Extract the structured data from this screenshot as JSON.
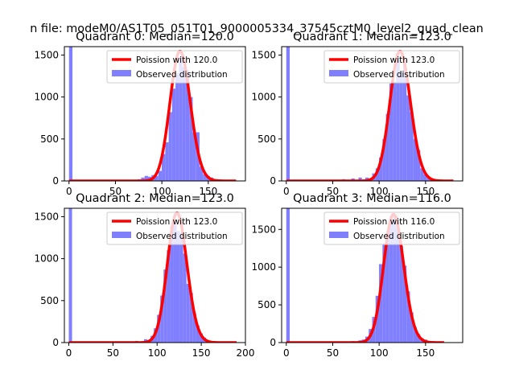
{
  "figure": {
    "suptitle": "n file: modeM0/AS1T05_051T01_9000005334_37545cztM0_level2_quad_clean",
    "colors": {
      "hist": "#8080ff",
      "poisson": "#ff0000",
      "axis": "#000000",
      "background": "#ffffff"
    }
  },
  "chart_data": [
    {
      "type": "bar",
      "title": "Quadrant 0: Median=120.0",
      "xlabel": "",
      "ylabel": "",
      "xlim": [
        -5,
        190
      ],
      "ylim": [
        0,
        1600
      ],
      "xticks": [
        0,
        50,
        100,
        150
      ],
      "yticks": [
        0,
        500,
        1000,
        1500
      ],
      "legend_position": "top-right",
      "legend": [
        "Poission with 120.0",
        "Observed distribution"
      ],
      "median": 120.0,
      "bin_width": 3.7,
      "histogram": {
        "name": "Observed distribution",
        "bin_starts": [
          0,
          74,
          77.7,
          81.4,
          85.1,
          88.8,
          92.5,
          96.2,
          99.9,
          103.6,
          107.3,
          111,
          114.7,
          118.4,
          122.1,
          125.8,
          129.5,
          133.2,
          136.9,
          140.6,
          144.3,
          148,
          151.7,
          155.4,
          159.1
        ],
        "counts": [
          1600,
          20,
          40,
          60,
          50,
          70,
          60,
          120,
          320,
          460,
          820,
          1100,
          1280,
          1480,
          1360,
          1320,
          1000,
          580,
          580,
          170,
          80,
          60,
          40,
          15,
          5
        ]
      },
      "poisson": {
        "name": "Poission with 120.0",
        "lambda": 120.0,
        "x_range": [
          0,
          180
        ],
        "scale": 1545
      }
    },
    {
      "type": "bar",
      "title": "Quadrant 1: Median=123.0",
      "xlabel": "",
      "ylabel": "",
      "xlim": [
        -5,
        190
      ],
      "ylim": [
        0,
        1600
      ],
      "xticks": [
        0,
        50,
        100,
        150
      ],
      "yticks": [
        0,
        500,
        1000,
        1500
      ],
      "legend_position": "top-right",
      "legend": [
        "Poission with 123.0",
        "Observed distribution"
      ],
      "median": 123.0,
      "bin_width": 3.7,
      "histogram": {
        "name": "Observed distribution",
        "bin_starts": [
          0,
          40,
          60,
          70,
          77.7,
          85.1,
          92.5,
          96.2,
          99.9,
          103.6,
          107.3,
          111,
          114.7,
          118.4,
          122.1,
          125.8,
          129.5,
          133.2,
          136.9,
          140.6,
          144.3,
          148,
          151.7,
          155.4
        ],
        "counts": [
          1600,
          10,
          20,
          30,
          40,
          40,
          90,
          150,
          280,
          500,
          800,
          1160,
          1180,
          1480,
          1300,
          1450,
          1020,
          820,
          500,
          370,
          150,
          80,
          30,
          10
        ]
      },
      "poisson": {
        "name": "Poission with 123.0",
        "lambda": 123.0,
        "x_range": [
          0,
          180
        ],
        "scale": 1545
      }
    },
    {
      "type": "bar",
      "title": "Quadrant 2: Median=123.0",
      "xlabel": "",
      "ylabel": "",
      "xlim": [
        -5,
        200
      ],
      "ylim": [
        0,
        1600
      ],
      "xticks": [
        0,
        50,
        100,
        150,
        200
      ],
      "yticks": [
        0,
        500,
        1000,
        1500
      ],
      "legend_position": "top-right",
      "legend": [
        "Poission with 123.0",
        "Observed distribution"
      ],
      "median": 123.0,
      "bin_width": 3.7,
      "histogram": {
        "name": "Observed distribution",
        "bin_starts": [
          0,
          75,
          85.1,
          92.5,
          96.2,
          99.9,
          103.6,
          107.3,
          111,
          114.7,
          118.4,
          122.1,
          125.8,
          129.5,
          133.2,
          136.9,
          140.6,
          144.3,
          148,
          151.7,
          155.4
        ],
        "counts": [
          1650,
          20,
          40,
          80,
          170,
          330,
          560,
          870,
          1100,
          1390,
          1420,
          1330,
          1310,
          1060,
          700,
          590,
          350,
          200,
          110,
          60,
          20
        ]
      },
      "poisson": {
        "name": "Poission with 123.0",
        "lambda": 123.0,
        "x_range": [
          0,
          190
        ],
        "scale": 1545
      }
    },
    {
      "type": "bar",
      "title": "Quadrant 3: Median=116.0",
      "xlabel": "",
      "ylabel": "",
      "xlim": [
        -5,
        190
      ],
      "ylim": [
        0,
        1780
      ],
      "xticks": [
        0,
        50,
        100,
        150
      ],
      "yticks": [
        0,
        500,
        1000,
        1500
      ],
      "legend_position": "top-right",
      "legend": [
        "Poission with 116.0",
        "Observed distribution"
      ],
      "median": 116.0,
      "bin_width": 3.7,
      "histogram": {
        "name": "Observed distribution",
        "bin_starts": [
          0,
          60,
          70,
          77.7,
          81.4,
          85.1,
          88.8,
          92.5,
          96.2,
          99.9,
          103.6,
          107.3,
          111,
          114.7,
          118.4,
          122.1,
          125.8,
          129.5,
          133.2,
          136.9,
          140.6,
          144.3,
          148,
          151.7
        ],
        "counts": [
          1780,
          10,
          20,
          30,
          40,
          80,
          180,
          340,
          620,
          1040,
          1310,
          1480,
          1600,
          1700,
          1520,
          1280,
          1020,
          680,
          400,
          200,
          110,
          60,
          40,
          20
        ]
      },
      "poisson": {
        "name": "Poission with 116.0",
        "lambda": 116.0,
        "x_range": [
          0,
          170
        ],
        "scale": 1700
      }
    }
  ]
}
